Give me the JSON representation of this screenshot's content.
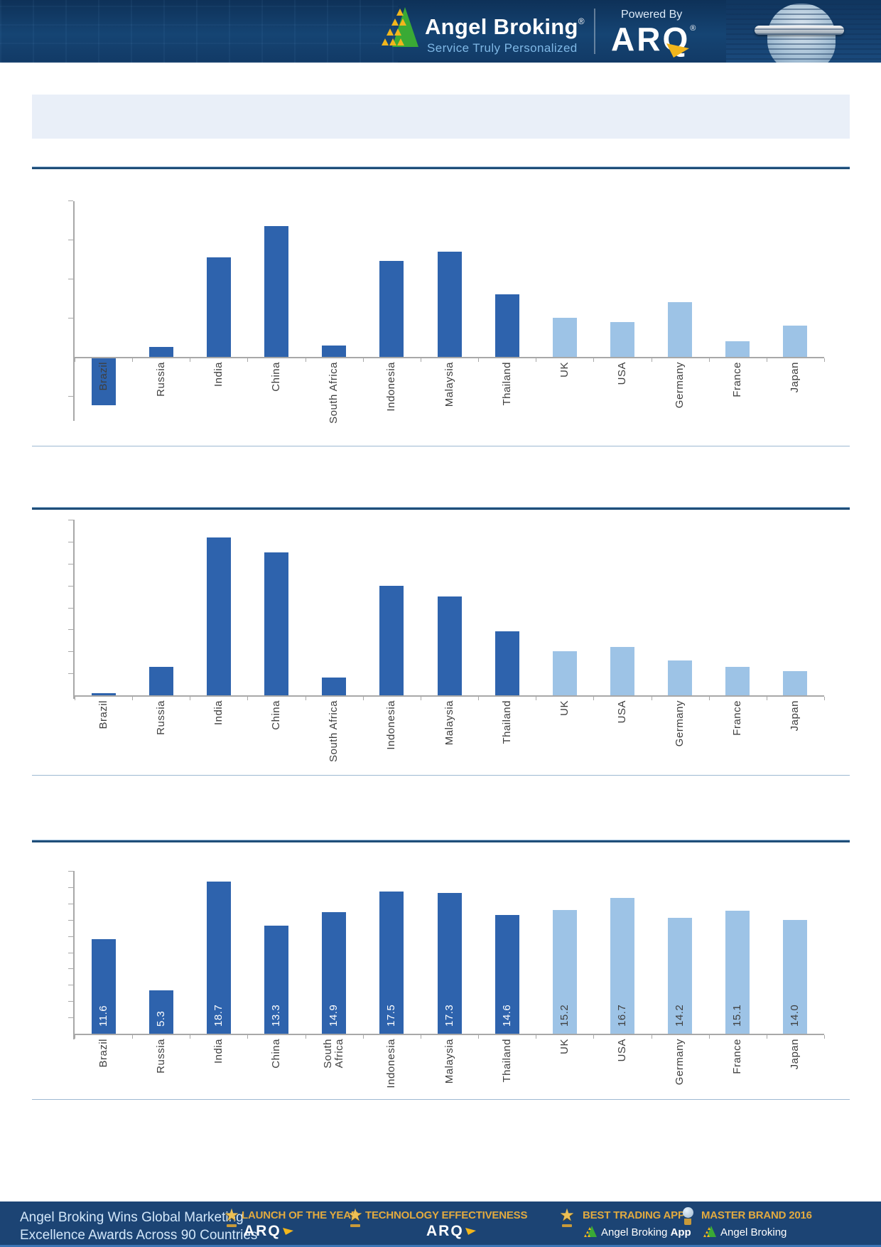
{
  "header": {
    "brand": "Angel Broking",
    "brand_reg": "®",
    "tagline": "Service Truly Personalized",
    "powered_by": "Powered By",
    "arq_wordmark": "ARQ",
    "arq_reg": "®"
  },
  "title_banner": {
    "text": ""
  },
  "chart_data": [
    {
      "type": "bar",
      "title": "",
      "categories": [
        "Brazil",
        "Russia",
        "India",
        "China",
        "South Africa",
        "Indonesia",
        "Malaysia",
        "Thailand",
        "UK",
        "USA",
        "Germany",
        "France",
        "Japan"
      ],
      "values": [
        -2.4,
        0.5,
        5.1,
        6.7,
        0.6,
        4.9,
        5.4,
        3.2,
        2.0,
        1.8,
        2.8,
        0.8,
        1.6
      ],
      "dark_bar_count": 8,
      "value_labels_shown": false,
      "axis_numbers_shown": false,
      "ylim": [
        -3,
        8
      ],
      "tick_step": 2,
      "gridlines": false,
      "legend": "none"
    },
    {
      "type": "bar",
      "title": "",
      "categories": [
        "Brazil",
        "Russia",
        "India",
        "China",
        "South Africa",
        "Indonesia",
        "Malaysia",
        "Thailand",
        "UK",
        "USA",
        "Germany",
        "France",
        "Japan"
      ],
      "values": [
        0.1,
        1.3,
        7.2,
        6.5,
        0.8,
        5.0,
        4.5,
        2.9,
        2.0,
        2.2,
        1.6,
        1.3,
        1.1
      ],
      "dark_bar_count": 8,
      "value_labels_shown": false,
      "axis_numbers_shown": false,
      "ylim": [
        0,
        8
      ],
      "tick_step": 1,
      "gridlines": false,
      "legend": "none"
    },
    {
      "type": "bar",
      "title": "",
      "categories": [
        "Brazil",
        "Russia",
        "India",
        "China",
        "South Africa",
        "Indonesia",
        "Malaysia",
        "Thailand",
        "UK",
        "USA",
        "Germany",
        "France",
        "Japan"
      ],
      "values": [
        11.6,
        5.3,
        18.7,
        13.3,
        14.9,
        17.5,
        17.3,
        14.6,
        15.2,
        16.7,
        14.2,
        15.1,
        14.0
      ],
      "value_labels": [
        "11.6",
        "5.3",
        "18.7",
        "13.3",
        "14.9",
        "17.5",
        "17.3",
        "14.6",
        "15.2",
        "16.7",
        "14.2",
        "15.1",
        "14.0"
      ],
      "dark_bar_count": 8,
      "value_labels_shown": true,
      "axis_numbers_shown": false,
      "wrap_labels": true,
      "ylim": [
        0,
        20
      ],
      "tick_step": 2,
      "gridlines": false,
      "legend": "none"
    }
  ],
  "colors": {
    "bar_dark": "#2e63ad",
    "bar_light": "#9dc3e6",
    "divider_dark": "#1f4e79",
    "divider_light": "#9db9d2",
    "banner_bg": "#e9eff8",
    "header_bg": "#123a66",
    "footer_bg": "#1c4474",
    "gold": "#e2aa3f",
    "axis": "#a8a8a8"
  },
  "footer": {
    "left_line1": "Angel Broking Wins Global Marketing",
    "left_line2": "Excellence Awards Across 90 Countries",
    "awards": [
      {
        "title": "LAUNCH OF THE YEAR",
        "sub": "ARQ",
        "sub_style": "arq-logo",
        "icon": "trophy-star"
      },
      {
        "title": "TECHNOLOGY EFFECTIVENESS",
        "sub": "ARQ",
        "sub_style": "arq-logo",
        "icon": "trophy-star"
      },
      {
        "title": "BEST TRADING APP",
        "sub": "Angel Broking App",
        "sub_bold_tail": "App",
        "sub_style": "brand-logo",
        "icon": "trophy-star"
      },
      {
        "title": "MASTER BRAND 2016",
        "sub": "Angel Broking",
        "sub_style": "brand-logo",
        "icon": "trophy-globe"
      }
    ]
  }
}
